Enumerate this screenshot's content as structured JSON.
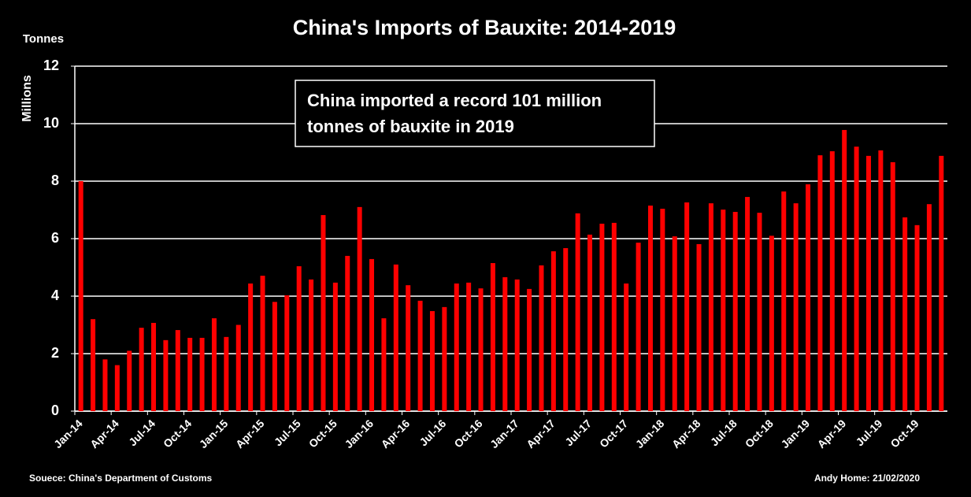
{
  "chart_data": {
    "type": "bar",
    "title": "China's Imports of Bauxite: 2014-2019",
    "y_unit": "Tonnes",
    "y_label": "Millions",
    "annotation": [
      "China imported a record 101 million",
      "tonnes of bauxite in 2019"
    ],
    "source": "Souece: China's Department of Customs",
    "credit": "Andy Home: 21/02/2020",
    "categories": [
      "Jan-14",
      null,
      null,
      "Apr-14",
      null,
      null,
      "Jul-14",
      null,
      null,
      "Oct-14",
      null,
      null,
      "Jan-15",
      null,
      null,
      "Apr-15",
      null,
      null,
      "Jul-15",
      null,
      null,
      "Oct-15",
      null,
      null,
      "Jan-16",
      null,
      null,
      "Apr-16",
      null,
      null,
      "Jul-16",
      null,
      null,
      "Oct-16",
      null,
      null,
      "Jan-17",
      null,
      null,
      "Apr-17",
      null,
      null,
      "Jul-17",
      null,
      null,
      "Oct-17",
      null,
      null,
      "Jan-18",
      null,
      null,
      "Apr-18",
      null,
      null,
      "Jul-18",
      null,
      null,
      "Oct-18",
      null,
      null,
      "Jan-19",
      null,
      null,
      "Apr-19",
      null,
      null,
      "Jul-19",
      null,
      null,
      "Oct-19",
      null,
      null
    ],
    "values": [
      8.0,
      3.2,
      1.8,
      1.6,
      2.1,
      2.9,
      3.07,
      2.47,
      2.82,
      2.55,
      2.55,
      3.23,
      2.58,
      3.0,
      4.44,
      4.71,
      3.8,
      4.03,
      5.04,
      4.58,
      6.82,
      4.47,
      5.4,
      7.1,
      5.29,
      3.23,
      5.1,
      4.38,
      3.84,
      3.48,
      3.62,
      4.44,
      4.47,
      4.27,
      5.15,
      4.66,
      4.58,
      4.25,
      5.07,
      5.56,
      5.67,
      6.88,
      6.14,
      6.52,
      6.55,
      4.44,
      5.86,
      7.15,
      7.04,
      6.08,
      7.26,
      5.81,
      7.23,
      7.01,
      6.93,
      7.45,
      6.9,
      6.1,
      7.64,
      7.23,
      7.89,
      8.9,
      9.04,
      9.78,
      9.2,
      8.88,
      9.07,
      8.66,
      6.74,
      6.47,
      7.2,
      8.88
    ],
    "color": "#ff0000",
    "ylim": [
      0,
      12
    ],
    "yticks": [
      0,
      2,
      4,
      6,
      8,
      10,
      12
    ],
    "grid": true
  }
}
